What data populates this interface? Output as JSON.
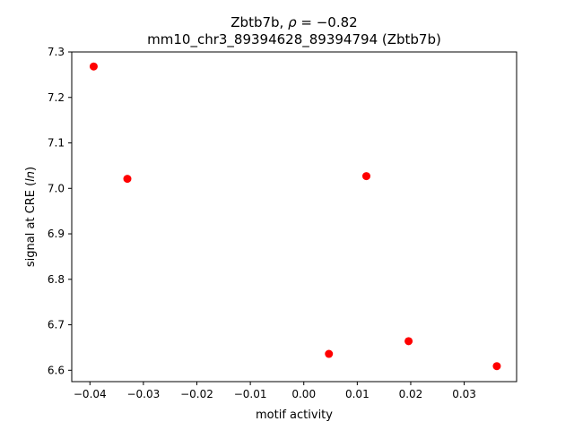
{
  "chart_data": {
    "type": "scatter",
    "title_line1": "Zbtb7b, ρ = −0.82",
    "title_line2": "mm10_chr3_89394628_89394794 (Zbtb7b)",
    "xlabel": "motif activity",
    "ylabel": "signal at CRE (ln)",
    "xlim": [
      -0.0434,
      0.0398
    ],
    "ylim": [
      6.575,
      7.3
    ],
    "xticks": [
      -0.04,
      -0.03,
      -0.02,
      -0.01,
      0.0,
      0.01,
      0.02,
      0.03
    ],
    "xtick_labels": [
      "−0.04",
      "−0.03",
      "−0.02",
      "−0.01",
      "0.00",
      "0.01",
      "0.02",
      "0.03"
    ],
    "yticks": [
      6.6,
      6.7,
      6.8,
      6.9,
      7.0,
      7.1,
      7.2,
      7.3
    ],
    "ytick_labels": [
      "6.6",
      "6.7",
      "6.8",
      "6.9",
      "7.0",
      "7.1",
      "7.2",
      "7.3"
    ],
    "grid": false,
    "marker_color": "#ff0000",
    "points": [
      {
        "x": -0.0393,
        "y": 7.268
      },
      {
        "x": -0.033,
        "y": 7.021
      },
      {
        "x": 0.0047,
        "y": 6.636
      },
      {
        "x": 0.0117,
        "y": 7.027
      },
      {
        "x": 0.0196,
        "y": 6.664
      },
      {
        "x": 0.0361,
        "y": 6.609
      }
    ]
  }
}
